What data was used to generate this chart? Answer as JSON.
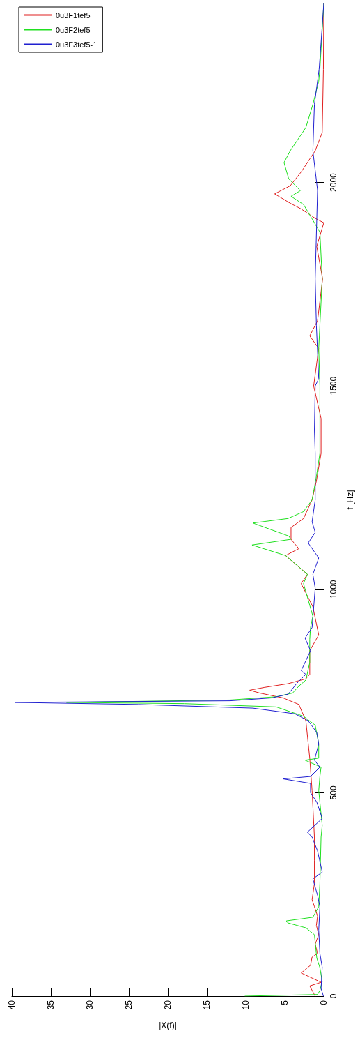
{
  "chart_data": {
    "type": "line",
    "xlabel": "|X(f)|",
    "ylabel": "f [Hz]",
    "xlim": [
      40,
      0
    ],
    "xticks": [
      0,
      5,
      10,
      15,
      20,
      25,
      30,
      35,
      40
    ],
    "ylim": [
      0,
      2440
    ],
    "yticks": [
      0,
      500,
      1000,
      1500,
      2000
    ],
    "grid": false,
    "legend": "top left",
    "marker": "none",
    "line_style": "solid",
    "series": [
      {
        "name": "0u3F1tef5",
        "color": "#e02020",
        "values": [
          0,
          25,
          34,
          57,
          76,
          96,
          105,
          128,
          151,
          174,
          197,
          220,
          237,
          277,
          334,
          391,
          505,
          585,
          677,
          717,
          733,
          745,
          752,
          759,
          768,
          780,
          791,
          849,
          888,
          957,
          1014,
          1037,
          1083,
          1100,
          1123,
          1152,
          1174,
          1220,
          1266,
          1334,
          1420,
          1500,
          1592,
          1623,
          1660,
          1763,
          1843,
          1901,
          1912,
          1935,
          1949,
          1972,
          1992,
          2026,
          2078,
          2123,
          2278,
          2440
        ],
        "x": [
          1.1,
          1.8,
          0.35,
          2.9,
          1.7,
          1.5,
          0.8,
          1.1,
          0.65,
          0.95,
          0.8,
          1.2,
          1.5,
          1.2,
          1.2,
          1.2,
          1.5,
          1.8,
          2.3,
          3.2,
          5.2,
          8.2,
          9.5,
          7.6,
          4.6,
          2.3,
          1.8,
          1.8,
          0.65,
          1.4,
          2.9,
          2.1,
          4.9,
          3.2,
          4.2,
          4.2,
          2.6,
          1.5,
          0.95,
          0.35,
          0.35,
          1.3,
          0.65,
          1.8,
          0.8,
          0.15,
          0.9,
          0,
          1.1,
          2.9,
          4.3,
          6.3,
          4.3,
          2.9,
          1.1,
          0.2,
          0.05,
          0
        ]
      },
      {
        "name": "0u3F2tef5",
        "color": "#20e020",
        "values": [
          0,
          4,
          14,
          36,
          70,
          94,
          151,
          168,
          180,
          185,
          194,
          220,
          277,
          391,
          420,
          505,
          540,
          563,
          580,
          585,
          620,
          666,
          688,
          711,
          719,
          722,
          728,
          736,
          745,
          762,
          777,
          820,
          877,
          906,
          934,
          1014,
          1037,
          1083,
          1109,
          1123,
          1131,
          1163,
          1174,
          1191,
          1220,
          1277,
          1334,
          1400,
          1500,
          1592,
          1763,
          1878,
          1901,
          1946,
          1966,
          1980,
          2009,
          2049,
          2078,
          2135,
          2192,
          2249,
          2278,
          2440
        ],
        "x": [
          10.1,
          0.8,
          0.5,
          0.2,
          0.5,
          0.9,
          1.2,
          2.3,
          4.6,
          4.8,
          1.4,
          0.65,
          0.5,
          0.35,
          0.2,
          0.65,
          0.5,
          0.35,
          2.4,
          0.65,
          0.65,
          1.1,
          2.6,
          6.1,
          17.9,
          33,
          12,
          6.1,
          4,
          3.2,
          2.3,
          1.8,
          1.8,
          1.7,
          1.4,
          2.6,
          2.1,
          4.9,
          9.2,
          4.2,
          4.5,
          9.1,
          4.6,
          2.6,
          1.5,
          0.95,
          0.5,
          0.5,
          0.5,
          0.65,
          0.2,
          0.5,
          1.2,
          2.6,
          4.2,
          3,
          4.5,
          5.1,
          4.3,
          2.3,
          1.4,
          0.65,
          0.5,
          0
        ]
      },
      {
        "name": "0u3F3tef5-1",
        "color": "#2020d0",
        "values": [
          0,
          19,
          71,
          105,
          162,
          220,
          248,
          288,
          305,
          357,
          391,
          403,
          437,
          477,
          500,
          523,
          534,
          540,
          563,
          580,
          620,
          648,
          677,
          694,
          708,
          717,
          722,
          726,
          733,
          742,
          751,
          768,
          791,
          800,
          849,
          880,
          906,
          1003,
          1037,
          1077,
          1114,
          1140,
          1166,
          1220,
          1334,
          1392,
          1500,
          1518,
          1649,
          1763,
          1981,
          2078,
          2192,
          2278,
          2330,
          2440
        ],
        "x": [
          0.05,
          0.35,
          0.2,
          0.5,
          0.65,
          0.5,
          0.8,
          1.4,
          0.2,
          0.8,
          1.5,
          2.1,
          0.2,
          0.9,
          1.7,
          1.7,
          5.2,
          1.7,
          0.5,
          1.2,
          0.65,
          0.9,
          2,
          3.7,
          9.1,
          23.8,
          39.6,
          12,
          6.7,
          4.6,
          4.2,
          3.5,
          2.3,
          2.9,
          1.7,
          2.4,
          1.5,
          1.1,
          1.4,
          0.65,
          2,
          1.1,
          1.5,
          1.1,
          1.1,
          1.2,
          1.1,
          0.65,
          0.95,
          1.1,
          0.8,
          1.4,
          1.2,
          0.6,
          0.4,
          0
        ]
      }
    ]
  }
}
